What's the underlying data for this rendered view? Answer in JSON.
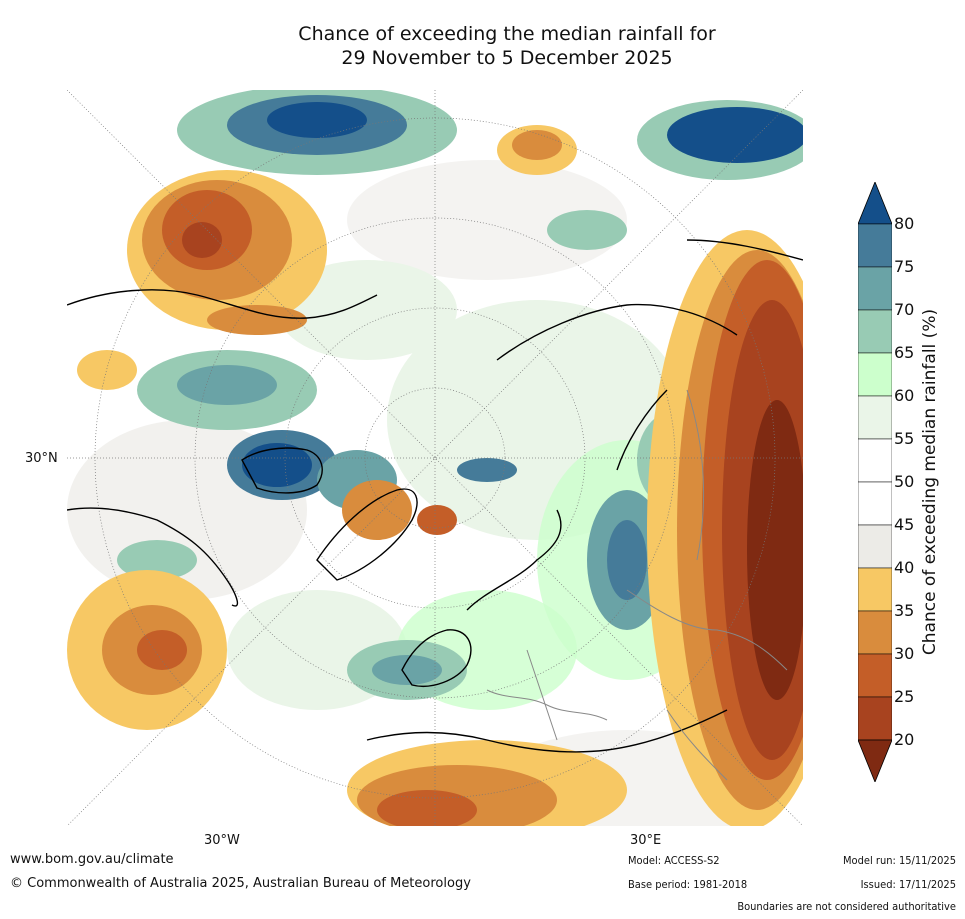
{
  "title": {
    "line1": "Chance of exceeding the median rainfall for",
    "line2": "29 November to 5 December 2025"
  },
  "map": {
    "axis_labels": {
      "lat_30n": "30°N",
      "lon_30w": "30°W",
      "lon_30e": "30°E"
    },
    "colors": {
      "c20": "#7f2a12",
      "c25": "#a8431f",
      "c30": "#c45e28",
      "c35": "#d98c3d",
      "c40": "#f7c864",
      "c45": "#ecebe7",
      "c55": "#ffffff",
      "c60": "#eaf5e8",
      "c65": "#ccffcc",
      "c70": "#98cbb4",
      "c75": "#6aa3a6",
      "c80": "#457b99",
      "c85": "#144f8a"
    }
  },
  "colorbar": {
    "ticks": [
      "80",
      "75",
      "70",
      "65",
      "60",
      "55",
      "50",
      "45",
      "40",
      "35",
      "30",
      "25",
      "20"
    ],
    "bins": [
      "#144f8a",
      "#457b99",
      "#6aa3a6",
      "#98cbb4",
      "#ccffcc",
      "#eaf5e8",
      "#ffffff",
      "#ffffff",
      "#ecebe7",
      "#f7c864",
      "#d98c3d",
      "#c45e28",
      "#a8431f",
      "#7f2a12"
    ],
    "label": "Chance of exceeding median rainfall (%)"
  },
  "footer": {
    "website": "www.bom.gov.au/climate",
    "copyright": "© Commonwealth of Australia 2025, Australian Bureau of Meteorology",
    "model": "Model: ACCESS-S2",
    "base_period": "Base period: 1981-2018",
    "model_run": "Model run: 15/11/2025",
    "issued": "Issued: 17/11/2025",
    "disclaimer": "Boundaries are not considered authoritative"
  }
}
